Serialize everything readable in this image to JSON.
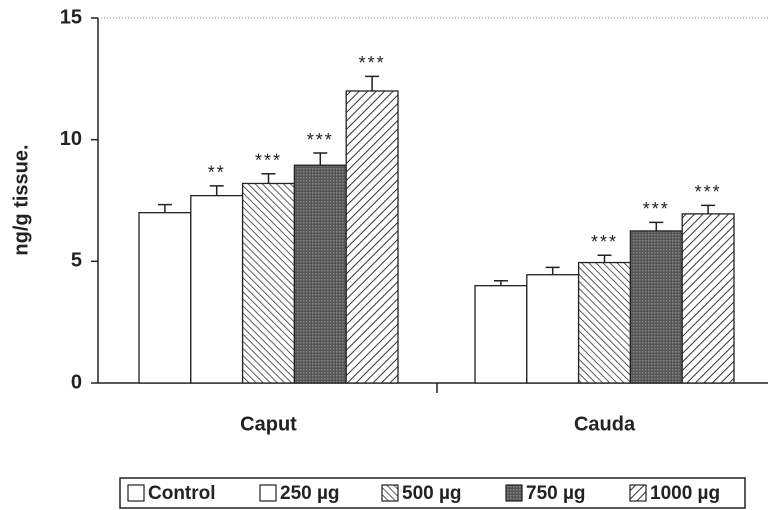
{
  "chart_data": {
    "type": "bar",
    "ylabel": "ng/g tissue.",
    "categories": [
      "Caput",
      "Cauda"
    ],
    "series": [
      {
        "name": "Control",
        "color": "#ffffff",
        "hatch": "none",
        "values": [
          7.0,
          4.0
        ],
        "errors": [
          0.33,
          0.2
        ],
        "annotations": [
          null,
          null
        ]
      },
      {
        "name": "250 µg",
        "color": "#ffffff",
        "hatch": "none",
        "values": [
          7.7,
          4.45
        ],
        "errors": [
          0.4,
          0.3
        ],
        "annotations": [
          "**",
          null
        ]
      },
      {
        "name": "500 µg",
        "color": "#ffffff",
        "hatch": "back",
        "values": [
          8.2,
          4.95
        ],
        "errors": [
          0.4,
          0.3
        ],
        "annotations": [
          "***",
          "***"
        ]
      },
      {
        "name": "750 µg",
        "color": "#555555",
        "hatch": "cross",
        "values": [
          8.95,
          6.25
        ],
        "errors": [
          0.5,
          0.35
        ],
        "annotations": [
          "***",
          "***"
        ]
      },
      {
        "name": "1000 µg",
        "color": "#ffffff",
        "hatch": "forward",
        "values": [
          12.0,
          6.95
        ],
        "errors": [
          0.6,
          0.35
        ],
        "annotations": [
          "***",
          "***"
        ]
      }
    ],
    "ylim": [
      0,
      15
    ],
    "yticks": [
      0,
      5,
      10,
      15
    ]
  }
}
